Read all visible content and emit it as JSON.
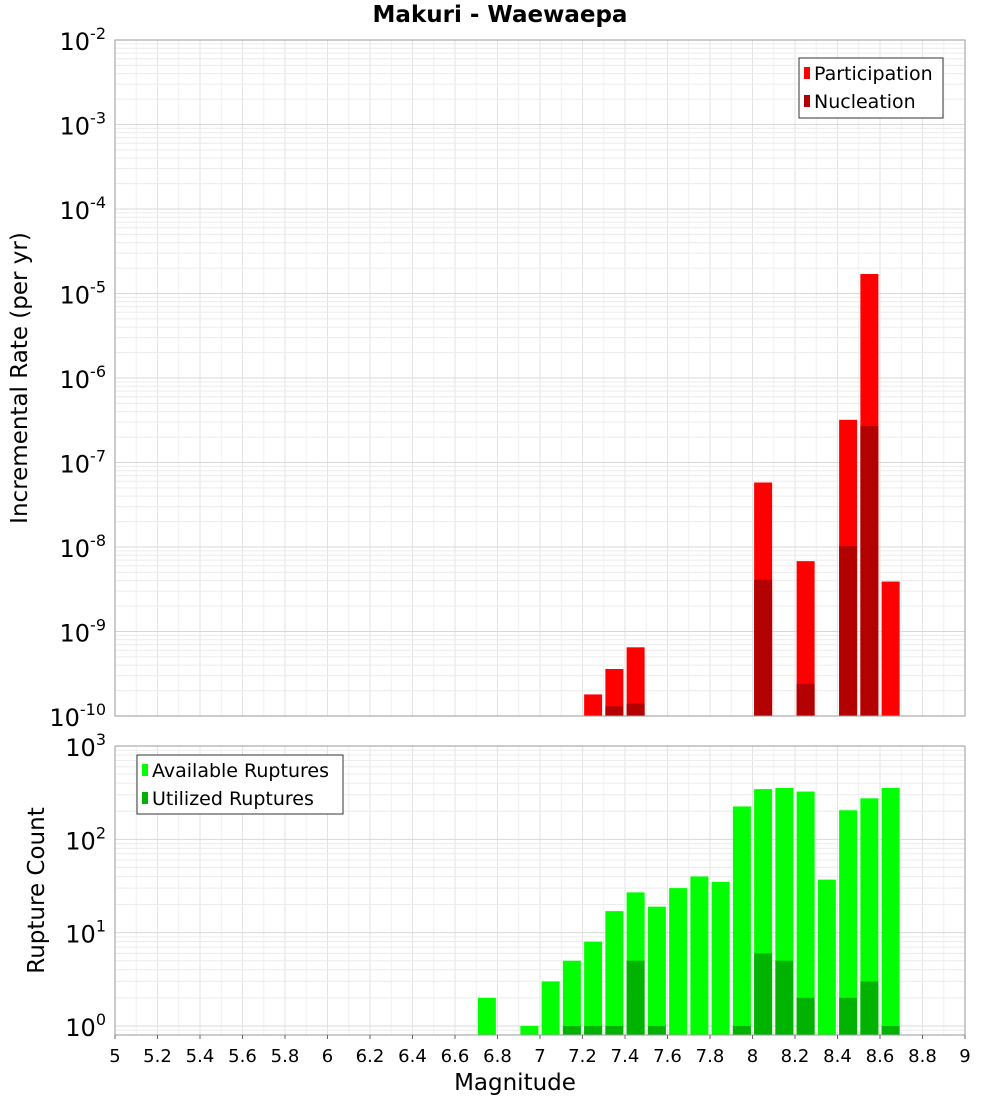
{
  "title": "Makuri - Waewaepa",
  "chart_data": [
    {
      "type": "bar",
      "title": "Makuri - Waewaepa",
      "ylabel": "Incremental Rate (per yr)",
      "xlabel": "",
      "yscale": "log",
      "ylim": [
        1e-10,
        0.01
      ],
      "xlim": [
        5,
        9
      ],
      "y_tick_exponents": [
        "-2",
        "-3",
        "-4",
        "-5",
        "-6",
        "-7",
        "-8",
        "-9",
        "-10"
      ],
      "y_tick_base": "10",
      "grid": true,
      "legend_position": "top-right",
      "series": [
        {
          "name": "Participation",
          "color": "#ff0000",
          "points": [
            {
              "x": 7.25,
              "y": 1.8e-10
            },
            {
              "x": 7.35,
              "y": 3.6e-10
            },
            {
              "x": 7.45,
              "y": 6.5e-10
            },
            {
              "x": 8.05,
              "y": 5.8e-08
            },
            {
              "x": 8.25,
              "y": 6.8e-09
            },
            {
              "x": 8.45,
              "y": 3.2e-07
            },
            {
              "x": 8.55,
              "y": 1.7e-05
            },
            {
              "x": 8.65,
              "y": 3.9e-09
            }
          ]
        },
        {
          "name": "Nucleation",
          "color": "#b30000",
          "points": [
            {
              "x": 7.35,
              "y": 1.3e-10
            },
            {
              "x": 7.45,
              "y": 1.4e-10
            },
            {
              "x": 8.05,
              "y": 4.1e-09
            },
            {
              "x": 8.25,
              "y": 2.4e-10
            },
            {
              "x": 8.45,
              "y": 1.03e-08
            },
            {
              "x": 8.55,
              "y": 2.7e-07
            }
          ]
        }
      ]
    },
    {
      "type": "bar",
      "ylabel": "Rupture Count",
      "xlabel": "Magnitude",
      "yscale": "log",
      "ylim": [
        0.8,
        1000
      ],
      "xlim": [
        5,
        9
      ],
      "y_tick_exponents": [
        "3",
        "2",
        "1",
        "0"
      ],
      "y_tick_values": [
        1000,
        100,
        10,
        1
      ],
      "y_tick_base": "10",
      "x_ticks": [
        "5",
        "5.2",
        "5.4",
        "5.6",
        "5.8",
        "6",
        "6.2",
        "6.4",
        "6.6",
        "6.8",
        "7",
        "7.2",
        "7.4",
        "7.6",
        "7.8",
        "8",
        "8.2",
        "8.4",
        "8.6",
        "8.8",
        "9"
      ],
      "grid": true,
      "legend_position": "top-left",
      "series": [
        {
          "name": "Available Ruptures",
          "color": "#00ff00",
          "points": [
            {
              "x": 6.75,
              "y": 2
            },
            {
              "x": 6.95,
              "y": 1
            },
            {
              "x": 7.05,
              "y": 3
            },
            {
              "x": 7.15,
              "y": 5
            },
            {
              "x": 7.25,
              "y": 8
            },
            {
              "x": 7.35,
              "y": 17
            },
            {
              "x": 7.45,
              "y": 27
            },
            {
              "x": 7.55,
              "y": 19
            },
            {
              "x": 7.65,
              "y": 30
            },
            {
              "x": 7.75,
              "y": 40
            },
            {
              "x": 7.85,
              "y": 35
            },
            {
              "x": 7.95,
              "y": 225
            },
            {
              "x": 8.05,
              "y": 345
            },
            {
              "x": 8.15,
              "y": 355
            },
            {
              "x": 8.25,
              "y": 325
            },
            {
              "x": 8.35,
              "y": 37
            },
            {
              "x": 8.45,
              "y": 205
            },
            {
              "x": 8.55,
              "y": 275
            },
            {
              "x": 8.65,
              "y": 355
            }
          ]
        },
        {
          "name": "Utilized Ruptures",
          "color": "#00b300",
          "points": [
            {
              "x": 7.15,
              "y": 1
            },
            {
              "x": 7.25,
              "y": 1
            },
            {
              "x": 7.35,
              "y": 1
            },
            {
              "x": 7.45,
              "y": 5
            },
            {
              "x": 7.55,
              "y": 1
            },
            {
              "x": 7.95,
              "y": 1
            },
            {
              "x": 8.05,
              "y": 6
            },
            {
              "x": 8.15,
              "y": 5
            },
            {
              "x": 8.25,
              "y": 2
            },
            {
              "x": 8.45,
              "y": 2
            },
            {
              "x": 8.55,
              "y": 3
            },
            {
              "x": 8.65,
              "y": 1
            }
          ]
        }
      ]
    }
  ]
}
